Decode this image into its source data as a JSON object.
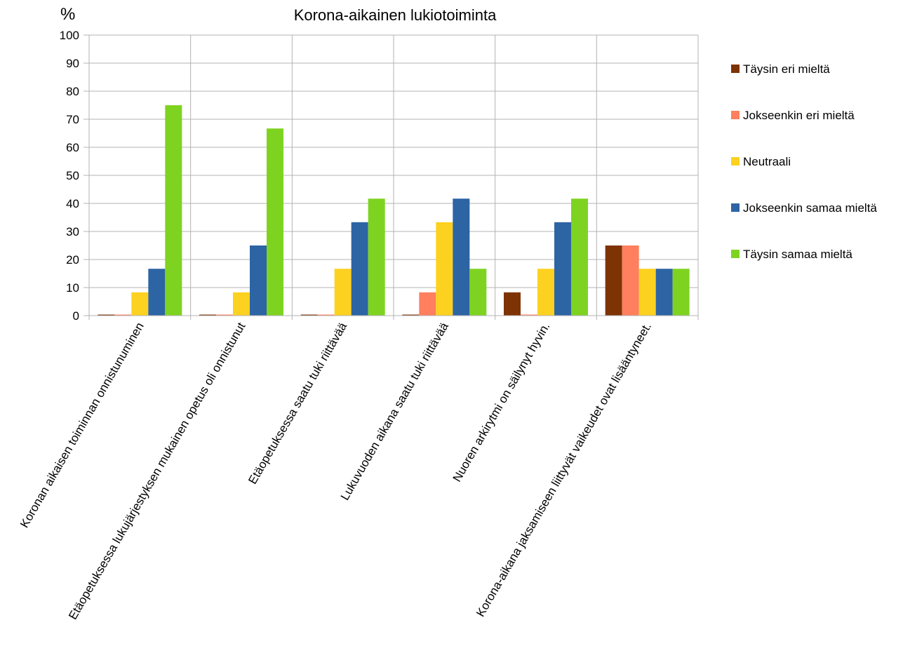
{
  "chart_data": {
    "type": "bar",
    "title": "Korona-aikainen lukiotoiminta",
    "ylabel": "%",
    "xlabel": "",
    "ylim": [
      0,
      100
    ],
    "ytick_step": 10,
    "grid": true,
    "legend_position": "right",
    "categories": [
      "Koronan aikaisen toiminnan onnistunuminen",
      "Etäopetuksessa lukujärjestyksen mukainen opetus oli onnistunut",
      "Etäopetuksessa saatu tuki riittävää",
      "Lukuvuoden aikana saatu tuki riittävää",
      "Nuoren arkirytmi on säilynyt hyvin.",
      "Korona-aikana jaksamiseen liittyvät vaikeudet ovat lisääntyneet."
    ],
    "series": [
      {
        "name": "Täysin eri mieltä",
        "color": "#7e3304",
        "values": [
          0,
          0,
          0,
          0,
          8.3,
          25
        ]
      },
      {
        "name": "Jokseenkin eri mieltä",
        "color": "#ff7f5e",
        "values": [
          0,
          0,
          0,
          8.3,
          0,
          25
        ]
      },
      {
        "name": "Neutraali",
        "color": "#fdd11f",
        "values": [
          8.3,
          8.3,
          16.7,
          33.3,
          16.7,
          16.7
        ]
      },
      {
        "name": "Jokseenkin samaa mieltä",
        "color": "#2d64a4",
        "values": [
          16.7,
          25,
          33.3,
          41.7,
          33.3,
          16.7
        ]
      },
      {
        "name": "Täysin samaa mieltä",
        "color": "#7ed321",
        "values": [
          75,
          66.7,
          41.7,
          16.7,
          41.7,
          16.7
        ]
      }
    ]
  }
}
